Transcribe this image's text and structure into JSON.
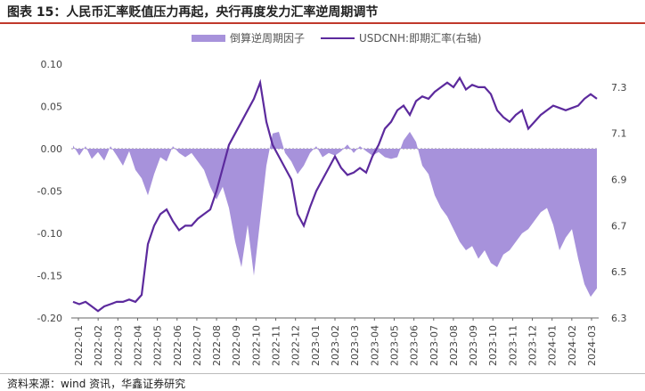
{
  "title": "图表 15：人民币汇率贬值压力再起，央行再度发力汇率逆周期调节",
  "source": "资料来源：wind 资讯，华鑫证券研究",
  "chart_data": {
    "type": "area+line",
    "series": [
      {
        "name": "倒算逆周期因子",
        "axis": "left",
        "kind": "area",
        "color": "#a792db",
        "points": [
          [
            0,
            0.004
          ],
          [
            1,
            -0.008
          ],
          [
            2,
            0.003
          ],
          [
            3,
            -0.012
          ],
          [
            4,
            -0.004
          ],
          [
            5,
            -0.014
          ],
          [
            6,
            0.003
          ],
          [
            7,
            -0.008
          ],
          [
            8,
            -0.02
          ],
          [
            9,
            -0.003
          ],
          [
            10,
            -0.025
          ],
          [
            11,
            -0.035
          ],
          [
            12,
            -0.055
          ],
          [
            13,
            -0.03
          ],
          [
            14,
            -0.01
          ],
          [
            15,
            -0.015
          ],
          [
            16,
            0.003
          ],
          [
            17,
            -0.005
          ],
          [
            18,
            -0.01
          ],
          [
            19,
            -0.005
          ],
          [
            20,
            -0.015
          ],
          [
            21,
            -0.025
          ],
          [
            22,
            -0.045
          ],
          [
            23,
            -0.06
          ],
          [
            24,
            -0.045
          ],
          [
            25,
            -0.07
          ],
          [
            26,
            -0.11
          ],
          [
            27,
            -0.14
          ],
          [
            28,
            -0.09
          ],
          [
            29,
            -0.15
          ],
          [
            30,
            -0.085
          ],
          [
            31,
            -0.02
          ],
          [
            32,
            0.018
          ],
          [
            33,
            0.02
          ],
          [
            34,
            -0.005
          ],
          [
            35,
            -0.015
          ],
          [
            36,
            -0.03
          ],
          [
            37,
            -0.02
          ],
          [
            38,
            -0.005
          ],
          [
            39,
            0.003
          ],
          [
            40,
            -0.01
          ],
          [
            41,
            -0.005
          ],
          [
            42,
            -0.008
          ],
          [
            43,
            -0.003
          ],
          [
            44,
            0.005
          ],
          [
            45,
            -0.005
          ],
          [
            46,
            0.003
          ],
          [
            47,
            -0.003
          ],
          [
            48,
            -0.008
          ],
          [
            49,
            -0.004
          ],
          [
            50,
            -0.01
          ],
          [
            51,
            -0.012
          ],
          [
            52,
            -0.01
          ],
          [
            53,
            0.01
          ],
          [
            54,
            0.02
          ],
          [
            55,
            0.008
          ],
          [
            56,
            -0.02
          ],
          [
            57,
            -0.03
          ],
          [
            58,
            -0.055
          ],
          [
            59,
            -0.07
          ],
          [
            60,
            -0.08
          ],
          [
            61,
            -0.095
          ],
          [
            62,
            -0.11
          ],
          [
            63,
            -0.12
          ],
          [
            64,
            -0.115
          ],
          [
            65,
            -0.13
          ],
          [
            66,
            -0.12
          ],
          [
            67,
            -0.135
          ],
          [
            68,
            -0.14
          ],
          [
            69,
            -0.125
          ],
          [
            70,
            -0.12
          ],
          [
            71,
            -0.11
          ],
          [
            72,
            -0.1
          ],
          [
            73,
            -0.095
          ],
          [
            74,
            -0.085
          ],
          [
            75,
            -0.075
          ],
          [
            76,
            -0.07
          ],
          [
            77,
            -0.09
          ],
          [
            78,
            -0.12
          ],
          [
            79,
            -0.105
          ],
          [
            80,
            -0.095
          ],
          [
            81,
            -0.13
          ],
          [
            82,
            -0.16
          ],
          [
            83,
            -0.175
          ],
          [
            84,
            -0.165
          ]
        ]
      },
      {
        "name": "USDCNH:即期汇率(右轴)",
        "axis": "right",
        "kind": "line",
        "color": "#5c2a9d",
        "points": [
          [
            0,
            6.37
          ],
          [
            1,
            6.36
          ],
          [
            2,
            6.37
          ],
          [
            3,
            6.35
          ],
          [
            4,
            6.33
          ],
          [
            5,
            6.35
          ],
          [
            6,
            6.36
          ],
          [
            7,
            6.37
          ],
          [
            8,
            6.37
          ],
          [
            9,
            6.38
          ],
          [
            10,
            6.37
          ],
          [
            11,
            6.4
          ],
          [
            12,
            6.62
          ],
          [
            13,
            6.7
          ],
          [
            14,
            6.75
          ],
          [
            15,
            6.77
          ],
          [
            16,
            6.72
          ],
          [
            17,
            6.68
          ],
          [
            18,
            6.7
          ],
          [
            19,
            6.7
          ],
          [
            20,
            6.73
          ],
          [
            21,
            6.75
          ],
          [
            22,
            6.77
          ],
          [
            23,
            6.85
          ],
          [
            24,
            6.95
          ],
          [
            25,
            7.05
          ],
          [
            26,
            7.1
          ],
          [
            27,
            7.15
          ],
          [
            28,
            7.2
          ],
          [
            29,
            7.25
          ],
          [
            30,
            7.32
          ],
          [
            31,
            7.15
          ],
          [
            32,
            7.05
          ],
          [
            33,
            7.0
          ],
          [
            34,
            6.95
          ],
          [
            35,
            6.9
          ],
          [
            36,
            6.75
          ],
          [
            37,
            6.7
          ],
          [
            38,
            6.78
          ],
          [
            39,
            6.85
          ],
          [
            40,
            6.9
          ],
          [
            41,
            6.95
          ],
          [
            42,
            7.0
          ],
          [
            43,
            6.95
          ],
          [
            44,
            6.92
          ],
          [
            45,
            6.93
          ],
          [
            46,
            6.95
          ],
          [
            47,
            6.93
          ],
          [
            48,
            7.0
          ],
          [
            49,
            7.05
          ],
          [
            50,
            7.12
          ],
          [
            51,
            7.15
          ],
          [
            52,
            7.2
          ],
          [
            53,
            7.22
          ],
          [
            54,
            7.18
          ],
          [
            55,
            7.24
          ],
          [
            56,
            7.26
          ],
          [
            57,
            7.25
          ],
          [
            58,
            7.28
          ],
          [
            59,
            7.3
          ],
          [
            60,
            7.32
          ],
          [
            61,
            7.3
          ],
          [
            62,
            7.34
          ],
          [
            63,
            7.29
          ],
          [
            64,
            7.31
          ],
          [
            65,
            7.3
          ],
          [
            66,
            7.3
          ],
          [
            67,
            7.27
          ],
          [
            68,
            7.2
          ],
          [
            69,
            7.17
          ],
          [
            70,
            7.15
          ],
          [
            71,
            7.18
          ],
          [
            72,
            7.2
          ],
          [
            73,
            7.12
          ],
          [
            74,
            7.15
          ],
          [
            75,
            7.18
          ],
          [
            76,
            7.2
          ],
          [
            77,
            7.22
          ],
          [
            78,
            7.21
          ],
          [
            79,
            7.2
          ],
          [
            80,
            7.21
          ],
          [
            81,
            7.22
          ],
          [
            82,
            7.25
          ],
          [
            83,
            7.27
          ],
          [
            84,
            7.25
          ]
        ]
      }
    ],
    "x_labels": [
      "2022-01",
      "2022-02",
      "2022-03",
      "2022-04",
      "2022-05",
      "2022-06",
      "2022-07",
      "2022-08",
      "2022-09",
      "2022-10",
      "2022-11",
      "2022-12",
      "2023-01",
      "2023-02",
      "2023-03",
      "2023-04",
      "2023-05",
      "2023-06",
      "2023-07",
      "2023-08",
      "2023-09",
      "2023-10",
      "2023-11",
      "2023-12",
      "2024-01",
      "2024-02",
      "2024-03"
    ],
    "y_left": {
      "min": -0.2,
      "max": 0.1,
      "ticks": [
        "0.10",
        "0.05",
        "0.00",
        "-0.05",
        "-0.10",
        "-0.15",
        "-0.20"
      ],
      "tick_values": [
        0.1,
        0.05,
        0,
        -0.05,
        -0.1,
        -0.15,
        -0.2
      ]
    },
    "y_right": {
      "min": 6.3,
      "max": 7.4,
      "ticks": [
        "7.3",
        "7.1",
        "6.9",
        "6.7",
        "6.5",
        "6.3"
      ],
      "tick_values": [
        7.3,
        7.1,
        6.9,
        6.7,
        6.5,
        6.3
      ]
    },
    "legend_position": "top-center"
  }
}
